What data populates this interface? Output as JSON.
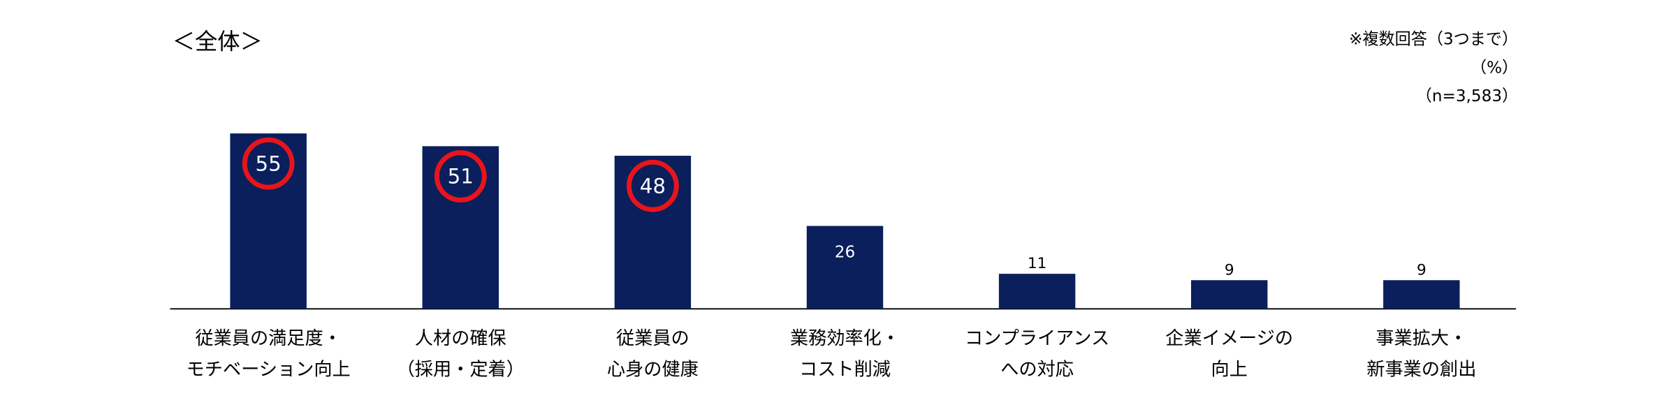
{
  "chart_data": {
    "type": "bar",
    "title": "＜全体＞",
    "notes": [
      "※複数回答（3つまで）",
      "（%）",
      "（n=3,583）"
    ],
    "categories": [
      [
        "従業員の満足度・",
        "モチベーション向上"
      ],
      [
        "人材の確保",
        "（採用・定着）"
      ],
      [
        "従業員の",
        "心身の健康"
      ],
      [
        "業務効率化・",
        "コスト削減"
      ],
      [
        "コンプライアンス",
        "への対応"
      ],
      [
        "企業イメージの",
        "向上"
      ],
      [
        "事業拡大・",
        "新事業の創出"
      ]
    ],
    "values": [
      55,
      51,
      48,
      26,
      11,
      9,
      9
    ],
    "color": "#0a1f5c",
    "highlighted": [
      0,
      1,
      2
    ],
    "highlight_color": "#e8141c"
  }
}
